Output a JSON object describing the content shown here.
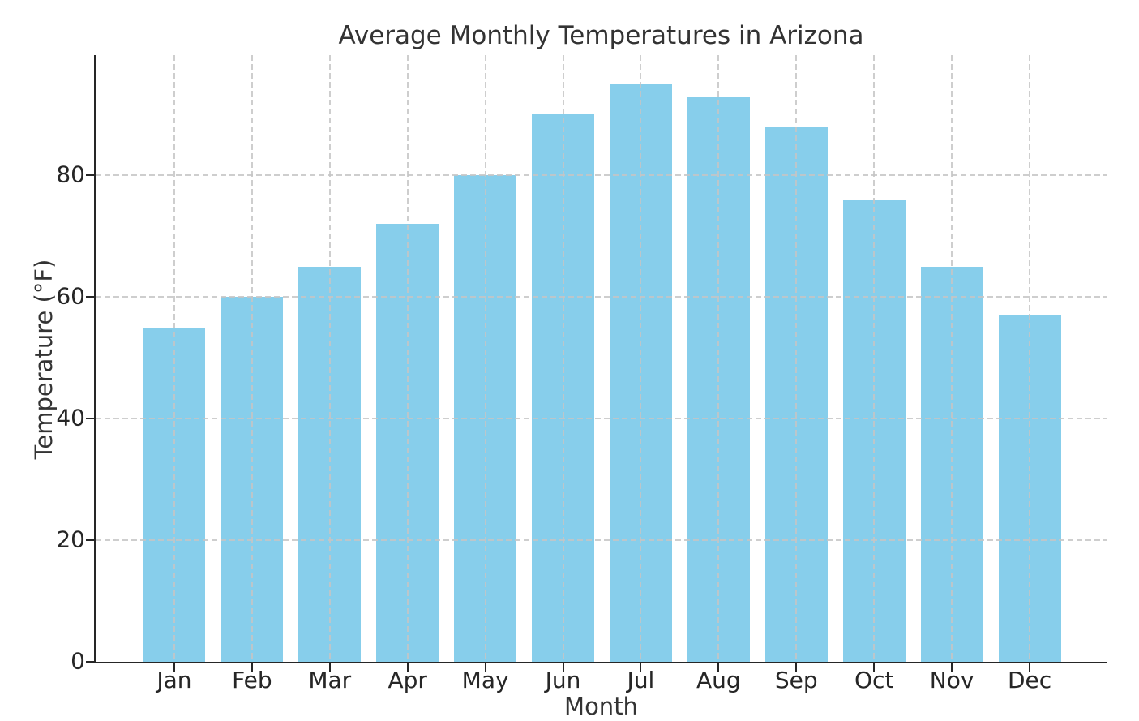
{
  "chart_data": {
    "type": "bar",
    "title": "Average Monthly Temperatures in Arizona",
    "xlabel": "Month",
    "ylabel": "Temperature (°F)",
    "categories": [
      "Jan",
      "Feb",
      "Mar",
      "Apr",
      "May",
      "Jun",
      "Jul",
      "Aug",
      "Sep",
      "Oct",
      "Nov",
      "Dec"
    ],
    "values": [
      55,
      60,
      65,
      72,
      80,
      90,
      95,
      93,
      88,
      76,
      65,
      57
    ],
    "yticks": [
      0,
      20,
      40,
      60,
      80
    ],
    "ylim": [
      0,
      99.75
    ],
    "bar_color": "#87CEEB",
    "grid": "dashed, both axes, drawn above bars",
    "legend": "none",
    "background_color": "#ffffff",
    "spine_color": "#262626",
    "grid_color": "#c5c5c5",
    "text_color": "#333333"
  }
}
